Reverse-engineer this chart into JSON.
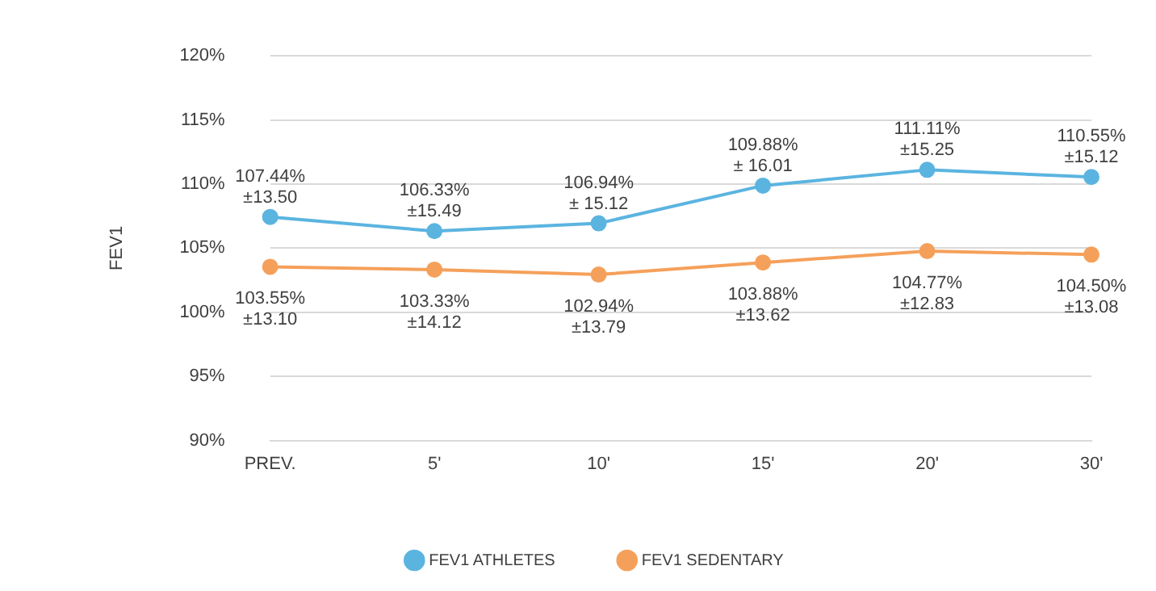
{
  "chart_data": {
    "type": "line",
    "ylabel": "FEV1",
    "categories": [
      "PREV.",
      "5'",
      "10'",
      "15'",
      "20'",
      "30'"
    ],
    "series": [
      {
        "name": "FEV1 ATHLETES",
        "color": "#5bb4e0",
        "values": [
          107.44,
          106.33,
          106.94,
          109.88,
          111.11,
          110.55
        ],
        "value_labels": [
          "107.44%\n±13.50",
          "106.33%\n±15.49",
          "106.94%\n± 15.12",
          "109.88%\n± 16.01",
          "111.11%\n±15.25",
          "110.55%\n±15.12"
        ]
      },
      {
        "name": "FEV1 SEDENTARY",
        "color": "#f5a05a",
        "values": [
          103.55,
          103.33,
          102.94,
          103.88,
          104.77,
          104.5
        ],
        "value_labels": [
          "103.55%\n±13.10",
          "103.33%\n±14.12",
          "102.94%\n±13.79",
          "103.88%\n±13.62",
          "104.77%\n±12.83",
          "104.50%\n±13.08"
        ]
      }
    ],
    "ylim": [
      90,
      120
    ],
    "yticks": [
      {
        "value": 90,
        "label": "90%"
      },
      {
        "value": 95,
        "label": "95%"
      },
      {
        "value": 100,
        "label": "100%"
      },
      {
        "value": 105,
        "label": "105%"
      },
      {
        "value": 110,
        "label": "110%"
      },
      {
        "value": 115,
        "label": "115%"
      },
      {
        "value": 120,
        "label": "120%"
      }
    ],
    "grid": "y",
    "legend": "bottom",
    "marker": "circle",
    "line_style": "solid"
  }
}
